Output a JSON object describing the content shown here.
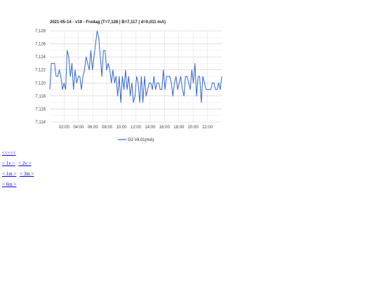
{
  "chart_data": {
    "type": "line",
    "title": "2021-05-14 - v19 - Fredag (T=7,128 | B=7,117 | d=0,011 mA)",
    "xlabel": "",
    "ylabel": "",
    "x_ticks": [
      "02:00",
      "04:00",
      "06:00",
      "08:00",
      "10:00",
      "12:00",
      "14:00",
      "16:00",
      "18:00",
      "20:00",
      "22:00"
    ],
    "x_tick_hours": [
      2,
      4,
      6,
      8,
      10,
      12,
      14,
      16,
      18,
      20,
      22
    ],
    "xlim": [
      0,
      24
    ],
    "y_ticks": [
      "7,114",
      "7,116",
      "7,118",
      "7,120",
      "7,122",
      "7,124",
      "7,126",
      "7,128"
    ],
    "ylim": [
      7.114,
      7.128
    ],
    "grid": true,
    "legend_position": "bottom",
    "series": [
      {
        "name": "G2 Vil 01(mA)",
        "color": "#3366cc",
        "values": [
          7.119,
          7.123,
          7.123,
          7.123,
          7.121,
          7.121,
          7.122,
          7.121,
          7.119,
          7.12,
          7.119,
          7.125,
          7.124,
          7.121,
          7.123,
          7.119,
          7.122,
          7.12,
          7.121,
          7.121,
          7.119,
          7.121,
          7.122,
          7.124,
          7.123,
          7.122,
          7.125,
          7.122,
          7.124,
          7.126,
          7.128,
          7.127,
          7.124,
          7.121,
          7.125,
          7.125,
          7.122,
          7.123,
          7.122,
          7.12,
          7.122,
          7.12,
          7.121,
          7.118,
          7.121,
          7.117,
          7.121,
          7.119,
          7.122,
          7.119,
          7.121,
          7.118,
          7.12,
          7.117,
          7.118,
          7.121,
          7.12,
          7.117,
          7.121,
          7.117,
          7.121,
          7.118,
          7.119,
          7.12,
          7.12,
          7.119,
          7.121,
          7.119,
          7.12,
          7.12,
          7.119,
          7.119,
          7.122,
          7.119,
          7.121,
          7.121,
          7.121,
          7.12,
          7.118,
          7.12,
          7.121,
          7.119,
          7.12,
          7.121,
          7.119,
          7.118,
          7.121,
          7.121,
          7.12,
          7.119,
          7.122,
          7.12,
          7.123,
          7.118,
          7.121,
          7.121,
          7.117,
          7.121,
          7.12,
          7.119,
          7.119,
          7.119,
          7.119,
          7.12,
          7.12,
          7.119,
          7.119,
          7.12,
          7.119,
          7.121
        ]
      }
    ]
  },
  "nav": {
    "row1": [
      "<<<<<"
    ],
    "row2": [
      "< 1v >",
      "< 2v >"
    ],
    "row3": [
      "< 1m >",
      "< 3m >"
    ],
    "row4": [
      "< 6m >"
    ]
  }
}
